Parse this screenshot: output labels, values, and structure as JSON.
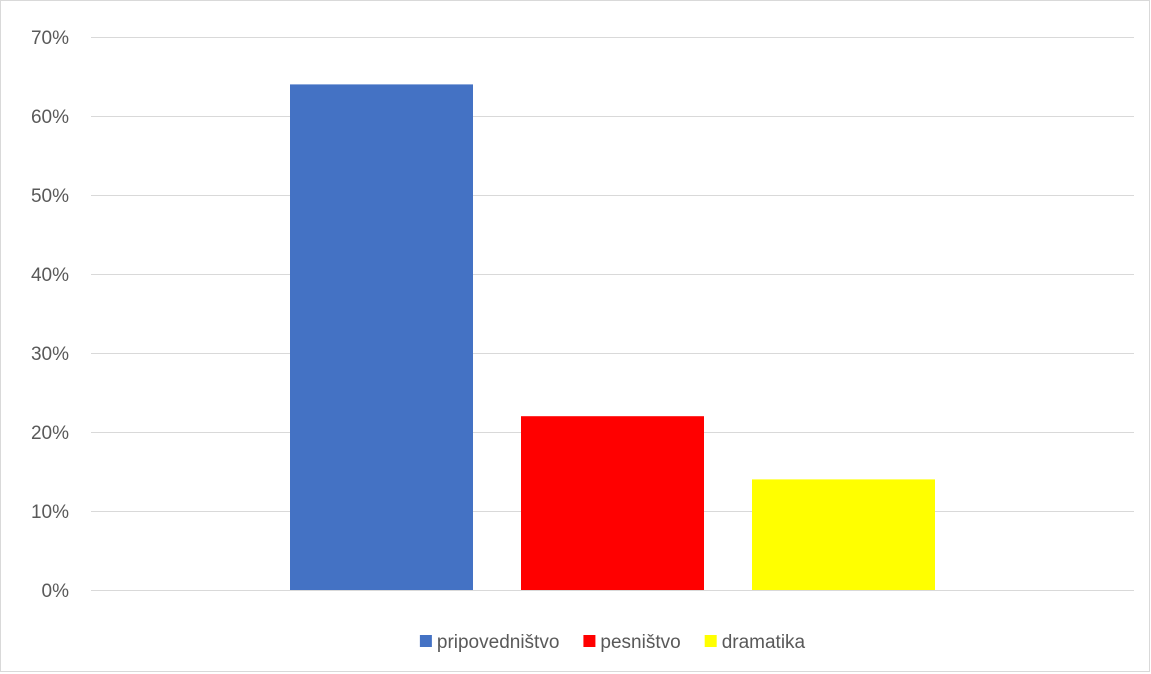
{
  "chart_data": {
    "type": "bar",
    "title": "",
    "xlabel": "",
    "ylabel": "",
    "ylim": [
      0,
      70
    ],
    "ytick_step": 10,
    "ytick_format": "percent",
    "grid": true,
    "legend_position": "bottom",
    "categories": [
      ""
    ],
    "series": [
      {
        "name": "pripovedništvo",
        "values": [
          64
        ],
        "color": "#4472C4"
      },
      {
        "name": "pesništvo",
        "values": [
          22
        ],
        "color": "#FF0000"
      },
      {
        "name": "dramatika",
        "values": [
          14
        ],
        "color": "#FFFF00"
      }
    ]
  }
}
